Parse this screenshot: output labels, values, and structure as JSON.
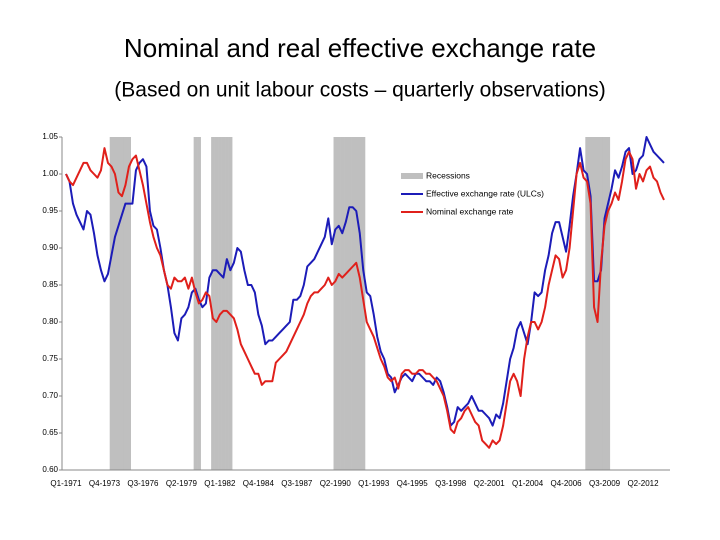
{
  "chart_data": {
    "type": "line",
    "title": "Nominal and real effective exchange rate",
    "subtitle": "(Based on unit labour costs – quarterly observations)",
    "categories": [
      "Q1-1971",
      null,
      null,
      null,
      null,
      null,
      null,
      null,
      null,
      null,
      null,
      "Q4-1973",
      null,
      null,
      null,
      null,
      null,
      null,
      null,
      null,
      null,
      null,
      "Q3-1976",
      null,
      null,
      null,
      null,
      null,
      null,
      null,
      null,
      null,
      null,
      "Q2-1979",
      null,
      null,
      null,
      null,
      null,
      null,
      null,
      null,
      null,
      null,
      "Q1-1982",
      null,
      null,
      null,
      null,
      null,
      null,
      null,
      null,
      null,
      null,
      "Q4-1984",
      null,
      null,
      null,
      null,
      null,
      null,
      null,
      null,
      null,
      null,
      "Q3-1987",
      null,
      null,
      null,
      null,
      null,
      null,
      null,
      null,
      null,
      null,
      "Q2-1990",
      null,
      null,
      null,
      null,
      null,
      null,
      null,
      null,
      null,
      null,
      "Q1-1993",
      null,
      null,
      null,
      null,
      null,
      null,
      null,
      null,
      null,
      null,
      "Q4-1995",
      null,
      null,
      null,
      null,
      null,
      null,
      null,
      null,
      null,
      null,
      "Q3-1998",
      null,
      null,
      null,
      null,
      null,
      null,
      null,
      null,
      null,
      null,
      "Q2-2001",
      null,
      null,
      null,
      null,
      null,
      null,
      null,
      null,
      null,
      null,
      "Q1-2004",
      null,
      null,
      null,
      null,
      null,
      null,
      null,
      null,
      null,
      null,
      "Q4-2006",
      null,
      null,
      null,
      null,
      null,
      null,
      null,
      null,
      null,
      null,
      "Q3-2009",
      null,
      null,
      null,
      null,
      null,
      null,
      null,
      null,
      null,
      null,
      "Q2-2012",
      null,
      null,
      null,
      null,
      null,
      null
    ],
    "ylim": [
      0.6,
      1.05
    ],
    "yticks": [
      {
        "value": 0.6,
        "label": "0.60"
      },
      0.65,
      {
        "value": 0.7,
        "label": "0.70"
      },
      0.75,
      {
        "value": 0.8,
        "label": "0.80"
      },
      0.85,
      {
        "value": 0.9,
        "label": "0.90"
      },
      0.95,
      {
        "value": 1,
        "label": "1.00"
      },
      1.05
    ],
    "series": [
      {
        "name": "Recessions",
        "type": "bar",
        "color": "#bfbfbf",
        "values": [
          null,
          null,
          null,
          null,
          null,
          null,
          null,
          null,
          null,
          null,
          null,
          null,
          null,
          1.05,
          1.05,
          1.05,
          1.05,
          1.05,
          1.05,
          null,
          null,
          null,
          null,
          null,
          null,
          null,
          null,
          null,
          null,
          null,
          null,
          null,
          null,
          null,
          null,
          null,
          null,
          1.05,
          1.05,
          null,
          null,
          null,
          1.05,
          1.05,
          1.05,
          1.05,
          1.05,
          1.05,
          null,
          null,
          null,
          null,
          null,
          null,
          null,
          null,
          null,
          null,
          null,
          null,
          null,
          null,
          null,
          null,
          null,
          null,
          null,
          null,
          null,
          null,
          null,
          null,
          null,
          null,
          null,
          null,
          null,
          1.05,
          1.05,
          1.05,
          1.05,
          1.05,
          1.05,
          1.05,
          1.05,
          1.05,
          null,
          null,
          null,
          null,
          null,
          null,
          null,
          null,
          null,
          null,
          null,
          null,
          null,
          null,
          null,
          null,
          null,
          null,
          null,
          null,
          null,
          null,
          null,
          null,
          null,
          null,
          null,
          null,
          null,
          null,
          null,
          null,
          null,
          null,
          null,
          null,
          null,
          null,
          null,
          null,
          null,
          null,
          null,
          null,
          null,
          null,
          null,
          null,
          null,
          null,
          null,
          null,
          null,
          null,
          null,
          null,
          null,
          null,
          null,
          null,
          null,
          null,
          null,
          1.05,
          1.05,
          1.05,
          1.05,
          1.05,
          1.05,
          1.05,
          null,
          null,
          null,
          null,
          null,
          null,
          null,
          null,
          null,
          null,
          null,
          null,
          null,
          null,
          null,
          null
        ]
      },
      {
        "name": "Effective exchange rate (ULCs)",
        "type": "line",
        "color": "#1c1cb8",
        "values": [
          1.0,
          0.99,
          0.96,
          0.945,
          0.935,
          0.925,
          0.95,
          0.945,
          0.92,
          0.89,
          0.87,
          0.855,
          0.865,
          0.89,
          0.915,
          0.93,
          0.945,
          0.96,
          0.96,
          0.96,
          1.005,
          1.015,
          1.02,
          1.01,
          0.95,
          0.93,
          0.925,
          0.9,
          0.87,
          0.85,
          0.82,
          0.785,
          0.775,
          0.805,
          0.81,
          0.82,
          0.84,
          0.845,
          0.83,
          0.82,
          0.825,
          0.86,
          0.87,
          0.87,
          0.865,
          0.86,
          0.885,
          0.87,
          0.88,
          0.9,
          0.895,
          0.87,
          0.85,
          0.85,
          0.84,
          0.81,
          0.795,
          0.77,
          0.775,
          0.775,
          0.78,
          0.785,
          0.79,
          0.795,
          0.8,
          0.83,
          0.83,
          0.835,
          0.85,
          0.875,
          0.88,
          0.885,
          0.895,
          0.905,
          0.915,
          0.94,
          0.905,
          0.925,
          0.93,
          0.92,
          0.935,
          0.955,
          0.955,
          0.95,
          0.92,
          0.87,
          0.84,
          0.835,
          0.81,
          0.78,
          0.76,
          0.75,
          0.73,
          0.725,
          0.705,
          0.715,
          0.725,
          0.73,
          0.725,
          0.72,
          0.73,
          0.73,
          0.725,
          0.72,
          0.72,
          0.715,
          0.725,
          0.72,
          0.705,
          0.685,
          0.66,
          0.665,
          0.685,
          0.68,
          0.685,
          0.69,
          0.7,
          0.69,
          0.68,
          0.68,
          0.675,
          0.67,
          0.66,
          0.675,
          0.67,
          0.69,
          0.72,
          0.75,
          0.765,
          0.79,
          0.8,
          0.785,
          0.77,
          0.8,
          0.84,
          0.835,
          0.84,
          0.87,
          0.89,
          0.92,
          0.935,
          0.935,
          0.915,
          0.895,
          0.93,
          0.97,
          1.0,
          1.035,
          1.005,
          1.0,
          0.97,
          0.855,
          0.855,
          0.87,
          0.94,
          0.96,
          0.98,
          1.005,
          0.995,
          1.01,
          1.03,
          1.035,
          1.0,
          1.005,
          1.02,
          1.025,
          1.05,
          1.04,
          1.03,
          1.025,
          1.02,
          1.015
        ]
      },
      {
        "name": "Nominal exchange rate",
        "type": "line",
        "color": "#e0201b",
        "values": [
          1.0,
          0.99,
          0.985,
          0.995,
          1.005,
          1.015,
          1.015,
          1.005,
          1.0,
          0.995,
          1.005,
          1.035,
          1.015,
          1.01,
          1.0,
          0.975,
          0.97,
          0.985,
          1.01,
          1.02,
          1.025,
          1.005,
          0.985,
          0.96,
          0.935,
          0.915,
          0.9,
          0.89,
          0.87,
          0.85,
          0.845,
          0.86,
          0.855,
          0.855,
          0.86,
          0.845,
          0.86,
          0.84,
          0.825,
          0.83,
          0.84,
          0.835,
          0.805,
          0.8,
          0.81,
          0.815,
          0.815,
          0.81,
          0.805,
          0.79,
          0.77,
          0.76,
          0.75,
          0.74,
          0.73,
          0.73,
          0.715,
          0.72,
          0.72,
          0.72,
          0.745,
          0.75,
          0.755,
          0.76,
          0.77,
          0.78,
          0.79,
          0.8,
          0.81,
          0.825,
          0.835,
          0.84,
          0.84,
          0.845,
          0.85,
          0.86,
          0.85,
          0.855,
          0.865,
          0.86,
          0.865,
          0.87,
          0.875,
          0.88,
          0.86,
          0.83,
          0.8,
          0.79,
          0.78,
          0.765,
          0.75,
          0.74,
          0.725,
          0.72,
          0.725,
          0.71,
          0.73,
          0.735,
          0.735,
          0.73,
          0.73,
          0.735,
          0.735,
          0.73,
          0.73,
          0.725,
          0.72,
          0.71,
          0.7,
          0.68,
          0.655,
          0.65,
          0.665,
          0.67,
          0.68,
          0.685,
          0.675,
          0.665,
          0.66,
          0.64,
          0.635,
          0.63,
          0.64,
          0.635,
          0.64,
          0.66,
          0.69,
          0.72,
          0.73,
          0.72,
          0.7,
          0.75,
          0.78,
          0.8,
          0.8,
          0.79,
          0.8,
          0.82,
          0.85,
          0.87,
          0.89,
          0.885,
          0.86,
          0.87,
          0.9,
          0.95,
          1.0,
          1.015,
          0.995,
          0.99,
          0.96,
          0.82,
          0.8,
          0.88,
          0.93,
          0.95,
          0.96,
          0.975,
          0.965,
          0.99,
          1.02,
          1.03,
          1.02,
          0.98,
          1.0,
          0.99,
          1.005,
          1.01,
          0.995,
          0.99,
          0.975,
          0.965
        ]
      }
    ]
  }
}
